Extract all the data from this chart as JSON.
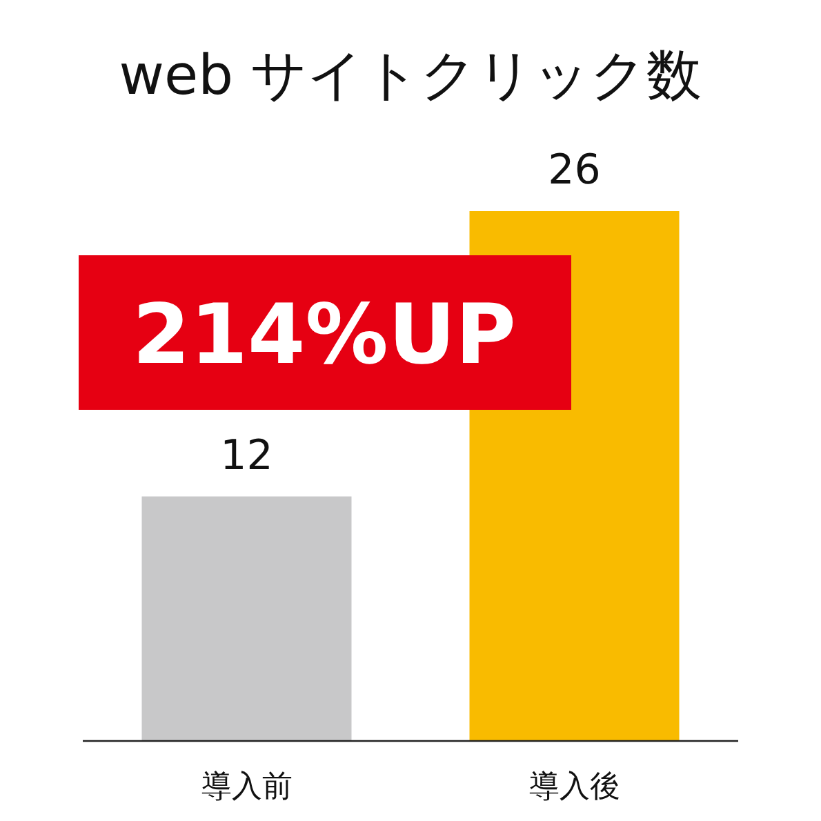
{
  "chart_data": {
    "type": "bar",
    "title": "web サイトクリック数",
    "categories": [
      "導入前",
      "導入後"
    ],
    "values": [
      12,
      26
    ],
    "colors": [
      "#c8c8c9",
      "#f9bb00"
    ],
    "data_labels": true,
    "annotations": [
      "214%UP"
    ]
  }
}
